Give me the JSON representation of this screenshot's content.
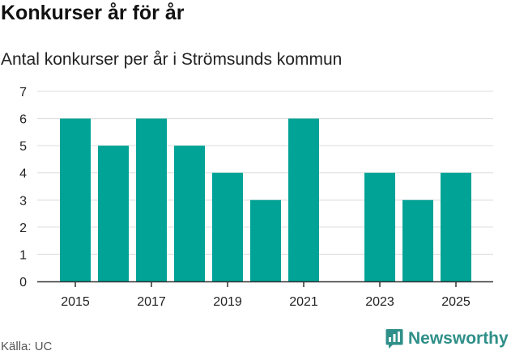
{
  "header": {
    "title": "Konkurser år för år",
    "subtitle": "Antal konkurser per år i Strömsunds kommun"
  },
  "footer": {
    "source": "Källa: UC",
    "brand": "Newsworthy"
  },
  "colors": {
    "bar": "#00a396",
    "grid": "#dcdcdc",
    "axis": "#333333",
    "brand": "#2f8f89"
  },
  "icons": {
    "brand": "newsworthy-logo-icon"
  },
  "chart_data": {
    "type": "bar",
    "categories": [
      2015,
      2016,
      2017,
      2018,
      2019,
      2020,
      2021,
      2022,
      2023,
      2024,
      2025
    ],
    "values": [
      6,
      5,
      6,
      5,
      4,
      3,
      6,
      0,
      4,
      3,
      4
    ],
    "title": "Konkurser år för år",
    "subtitle": "Antal konkurser per år i Strömsunds kommun",
    "xlabel": "",
    "ylabel": "",
    "ylim": [
      0,
      7
    ],
    "yticks": [
      0,
      1,
      2,
      3,
      4,
      5,
      6,
      7
    ],
    "xticks": [
      2015,
      2017,
      2019,
      2021,
      2023,
      2025
    ],
    "grid": true,
    "legend": "none"
  }
}
